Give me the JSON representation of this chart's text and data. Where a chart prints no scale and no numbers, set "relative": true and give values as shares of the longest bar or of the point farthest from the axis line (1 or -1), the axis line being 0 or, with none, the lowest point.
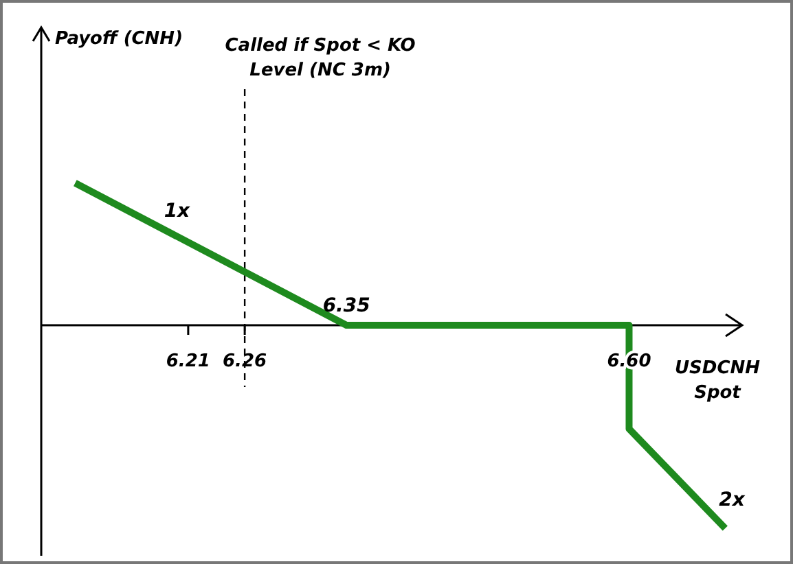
{
  "chart_data": {
    "type": "line",
    "relative": true,
    "xlabel": "USDCNH Spot",
    "x": [
      6.11,
      6.35,
      6.6,
      6.6,
      6.685
    ],
    "series": [
      {
        "color": "#1e8a1e",
        "values": [
          0.7,
          0,
          0,
          -0.51,
          -1
        ]
      }
    ],
    "xlim": [
      6.08,
      6.7
    ],
    "xticks": [
      6.21,
      6.26,
      {
        "value": 6.6,
        "label": "6.60"
      }
    ],
    "ref_lines": [
      {
        "axis": "x",
        "value": 6.26,
        "label": "Called if Spot < KO Level (NC 3m)",
        "line_style": "dashed",
        "color": "#000000"
      }
    ],
    "annotations": [
      "Payoff (CNH)",
      {
        "text": "6.35",
        "x": 6.35,
        "y": 0
      },
      {
        "text": "1x",
        "x": 6.2,
        "y": 0.44
      },
      {
        "text": "2x",
        "x": 6.66,
        "y": -0.86
      }
    ],
    "marker": "none",
    "line_style": "solid",
    "grid": false,
    "legend": false
  }
}
